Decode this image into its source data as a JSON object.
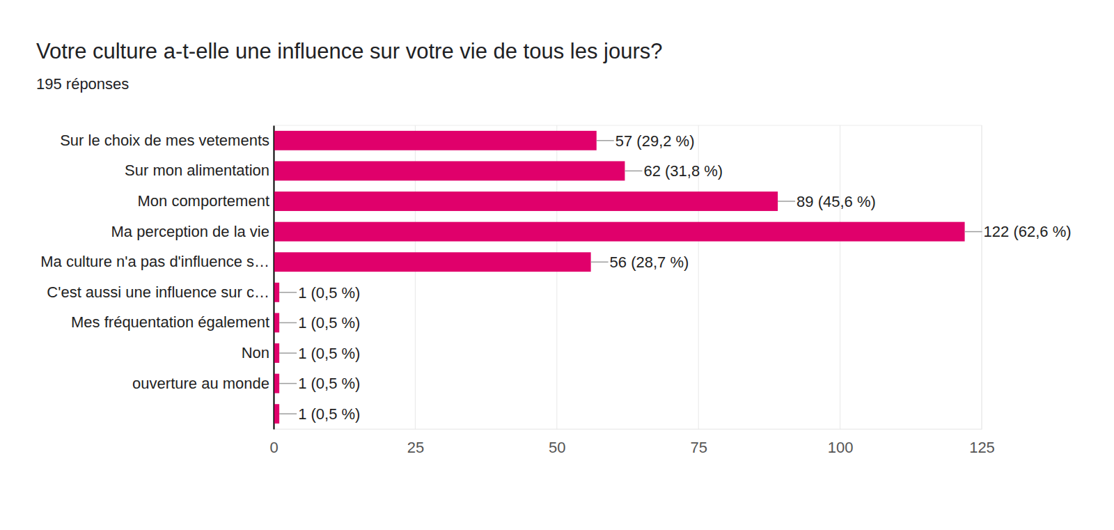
{
  "chart_data": {
    "type": "bar",
    "title": "Votre culture a-t-elle une influence sur votre vie de tous les jours?",
    "subtitle": "195 réponses",
    "orientation": "horizontal",
    "categories": [
      "Sur le choix de mes vetements",
      "Sur mon alimentation",
      "Mon comportement",
      "Ma perception de la vie",
      "Ma culture n'a pas d'influence s…",
      "C'est aussi une influence sur c…",
      "Mes fréquentation également",
      "Non",
      "ouverture au monde",
      null
    ],
    "values": [
      57,
      62,
      89,
      122,
      56,
      1,
      1,
      1,
      1,
      1
    ],
    "value_labels": [
      "57 (29,2 %)",
      "62 (31,8 %)",
      "89 (45,6 %)",
      "122 (62,6 %)",
      "56 (28,7 %)",
      "1 (0,5 %)",
      "1 (0,5 %)",
      "1 (0,5 %)",
      "1 (0,5 %)",
      "1 (0,5 %)"
    ],
    "color": "#e0006b",
    "xlim": [
      0,
      125
    ],
    "xticks": [
      0,
      25,
      50,
      75,
      100,
      125
    ],
    "grid": true,
    "data_labels": true
  }
}
